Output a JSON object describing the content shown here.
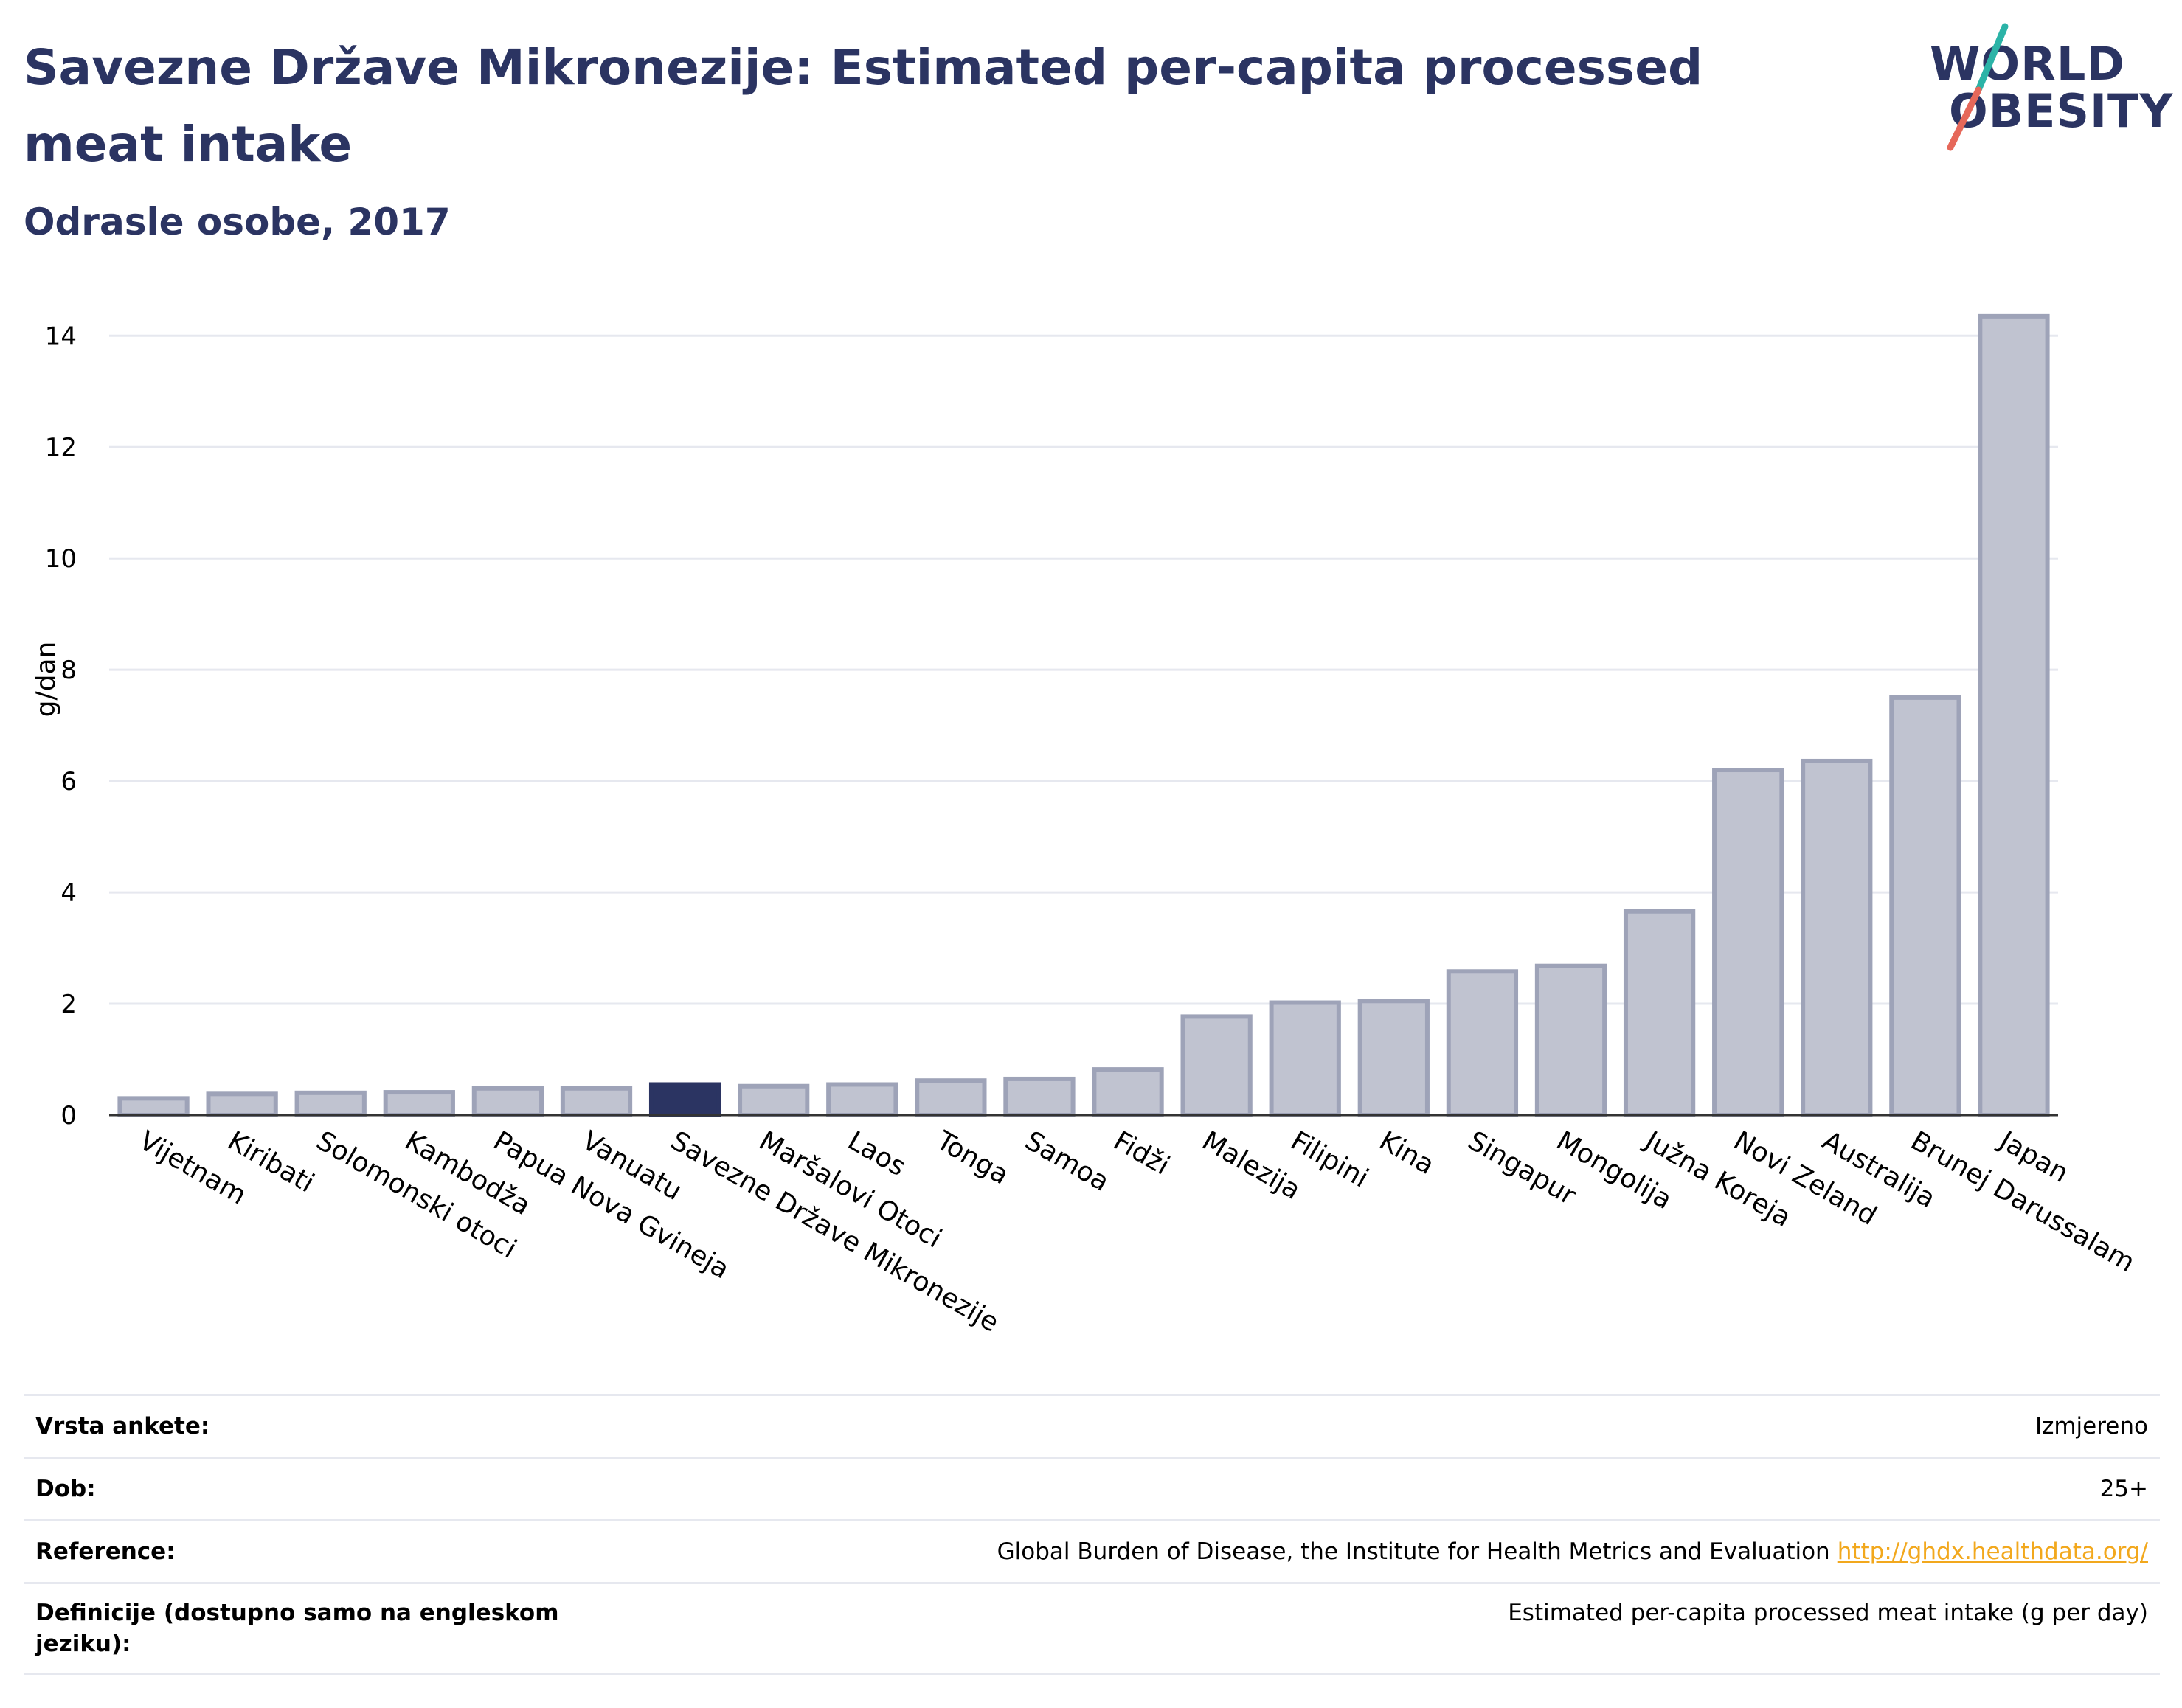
{
  "title": "Savezne Države Mikronezije: Estimated per-capita processed meat intake",
  "subtitle": "Odrasle osobe, 2017",
  "logo": {
    "line1": "WORLD",
    "line2": "OBESITY"
  },
  "colors": {
    "title": "#2b3462",
    "bar": "#c0c3d0",
    "bar_stroke": "#9ea3b8",
    "highlight": "#2b3462",
    "accent_teal": "#2bb3a7",
    "accent_red": "#e6685a",
    "link": "#f2a81d"
  },
  "chart_data": {
    "type": "bar",
    "ylabel": "g/dan",
    "xlabel": "",
    "ylim": [
      0,
      14.6
    ],
    "yticks": [
      0,
      2,
      4,
      6,
      8,
      10,
      12,
      14
    ],
    "categories": [
      "Vijetnam",
      "Kiribati",
      "Solomonski otoci",
      "Kambodža",
      "Papua Nova Gvineja",
      "Vanuatu",
      "Savezne Države Mikronezije",
      "Maršalovi Otoci",
      "Laos",
      "Tonga",
      "Samoa",
      "Fidži",
      "Malezija",
      "Filipini",
      "Kina",
      "Singapur",
      "Mongolija",
      "Južna Koreja",
      "Novi Zeland",
      "Australija",
      "Brunej Darussalam",
      "Japan"
    ],
    "values": [
      0.3,
      0.38,
      0.4,
      0.41,
      0.48,
      0.48,
      0.55,
      0.52,
      0.55,
      0.62,
      0.65,
      0.82,
      1.77,
      2.02,
      2.05,
      2.58,
      2.68,
      3.66,
      6.2,
      6.36,
      7.5,
      14.35
    ],
    "highlight": "Savezne Države Mikronezije",
    "grid": true
  },
  "info": [
    {
      "label": "Vrsta ankete:",
      "value": "Izmjereno"
    },
    {
      "label": "Dob:",
      "value": "25+"
    },
    {
      "label": "Reference:",
      "value": "Global Burden of Disease, the Institute for Health Metrics and Evaluation",
      "link": "http://ghdx.healthdata.org/"
    },
    {
      "label": "Definicije (dostupno samo na engleskom jeziku):",
      "value": "Estimated per-capita processed meat intake (g per day)"
    }
  ]
}
